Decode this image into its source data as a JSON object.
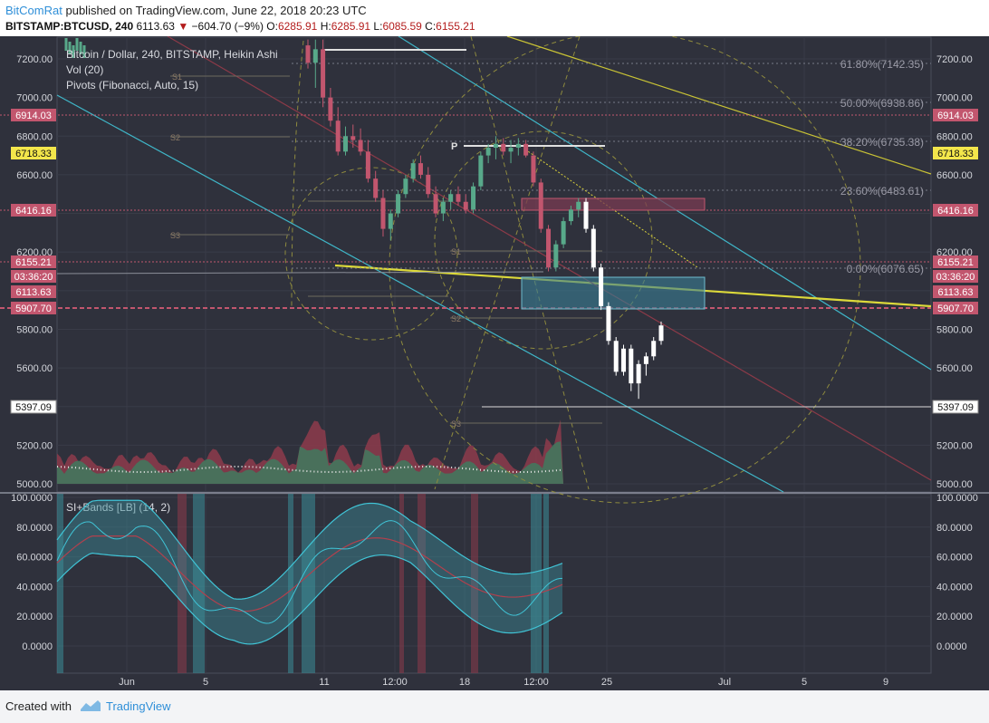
{
  "header": {
    "author": "BitComRat",
    "published_text": "published on TradingView.com, June 22, 2018 20:23 UTC",
    "symbol": "BITSTAMP:BTCUSD, 240",
    "last": "6113.63",
    "arrow": "▼",
    "change": "−604.70 (−9%)",
    "o_label": "O:",
    "o": "6285.91",
    "h_label": "H:",
    "h": "6285.91",
    "l_label": "L:",
    "l": "6085.59",
    "c_label": "C:",
    "c": "6155.21"
  },
  "legend": {
    "title": "Bitcoin / Dollar, 240, BITSTAMP, Heikin Ashi",
    "vol": "Vol (20)",
    "pivots": "Pivots (Fibonacci, Auto, 15)",
    "si": "SI+Bands [LB] (14, 2)"
  },
  "fib_labels": [
    "61.80%(7142.35)",
    "50.00%(6938.86)",
    "38.20%(6735.38)",
    "23.60%(6483.61)",
    "0.00%(6076.65)"
  ],
  "pivot_labels": [
    "S1",
    "S2",
    "S3",
    "P",
    "S1",
    "S2",
    "S3"
  ],
  "price_badges": [
    {
      "text": "6914.03",
      "color": "#c2566e"
    },
    {
      "text": "6718.33",
      "color": "#f3e64b"
    },
    {
      "text": "6416.16",
      "color": "#c2566e"
    },
    {
      "text": "6155.21",
      "color": "#c2566e"
    },
    {
      "text": "03:36:20",
      "color": "#c2566e"
    },
    {
      "text": "6113.63",
      "color": "#c2566e"
    },
    {
      "text": "5907.70",
      "color": "#c2566e"
    },
    {
      "text": "5397.09",
      "color": "#ffffff"
    }
  ],
  "footer": {
    "created_with": "Created with",
    "brand": "TradingView"
  },
  "chart_data": [
    {
      "type": "candlestick",
      "title": "Bitcoin / Dollar, 240, BITSTAMP, Heikin Ashi",
      "x_ticks": [
        "Jun",
        "5",
        "11",
        "12:00",
        "18",
        "12:00",
        "25",
        "Jul",
        "5",
        "9"
      ],
      "y_ticks": [
        7200,
        7000,
        6800,
        6600,
        6400,
        6200,
        6000,
        5800,
        5600,
        5400,
        5200,
        5000
      ],
      "y_tick_labels": [
        "7200.00",
        "7000.00",
        "6800.00",
        "6600.00",
        "",
        "6200.00",
        "",
        "5800.00",
        "5600.00",
        "",
        "5200.00",
        "5000.00"
      ],
      "ylim": [
        4980,
        7300
      ],
      "candles": [
        [
          7270,
          7300,
          7150,
          7180
        ],
        [
          7180,
          7300,
          7050,
          7250
        ],
        [
          7250,
          7300,
          6950,
          7000
        ],
        [
          7000,
          7050,
          6850,
          6880
        ],
        [
          6880,
          6950,
          6700,
          6720
        ],
        [
          6720,
          6850,
          6700,
          6800
        ],
        [
          6800,
          6860,
          6740,
          6780
        ],
        [
          6780,
          6840,
          6700,
          6720
        ],
        [
          6720,
          6780,
          6560,
          6580
        ],
        [
          6580,
          6620,
          6460,
          6480
        ],
        [
          6480,
          6520,
          6280,
          6320
        ],
        [
          6320,
          6420,
          6260,
          6400
        ],
        [
          6400,
          6520,
          6380,
          6500
        ],
        [
          6500,
          6600,
          6480,
          6580
        ],
        [
          6580,
          6680,
          6560,
          6660
        ],
        [
          6660,
          6700,
          6580,
          6600
        ],
        [
          6600,
          6640,
          6480,
          6500
        ],
        [
          6500,
          6540,
          6380,
          6400
        ],
        [
          6400,
          6480,
          6360,
          6460
        ],
        [
          6460,
          6520,
          6420,
          6500
        ],
        [
          6500,
          6540,
          6440,
          6460
        ],
        [
          6460,
          6500,
          6400,
          6420
        ],
        [
          6420,
          6560,
          6400,
          6540
        ],
        [
          6540,
          6720,
          6520,
          6700
        ],
        [
          6700,
          6760,
          6660,
          6740
        ],
        [
          6740,
          6800,
          6680,
          6760
        ],
        [
          6760,
          6790,
          6700,
          6720
        ],
        [
          6720,
          6780,
          6660,
          6740
        ],
        [
          6740,
          6790,
          6700,
          6760
        ],
        [
          6760,
          6780,
          6690,
          6700
        ],
        [
          6700,
          6720,
          6540,
          6560
        ],
        [
          6560,
          6580,
          6300,
          6320
        ],
        [
          6320,
          6340,
          6100,
          6120
        ],
        [
          6120,
          6260,
          6100,
          6240
        ],
        [
          6240,
          6380,
          6220,
          6360
        ],
        [
          6360,
          6440,
          6340,
          6420
        ],
        [
          6420,
          6480,
          6380,
          6460
        ],
        [
          6460,
          6480,
          6300,
          6320
        ],
        [
          6320,
          6340,
          6100,
          6120
        ],
        [
          6120,
          6140,
          5900,
          5920
        ],
        [
          5920,
          5940,
          5720,
          5740
        ],
        [
          5740,
          5760,
          5560,
          5580
        ],
        [
          5580,
          5720,
          5560,
          5700
        ],
        [
          5700,
          5720,
          5480,
          5520
        ],
        [
          5520,
          5640,
          5440,
          5620
        ],
        [
          5620,
          5680,
          5560,
          5660
        ],
        [
          5660,
          5760,
          5640,
          5740
        ],
        [
          5740,
          5840,
          5720,
          5820
        ]
      ]
    },
    {
      "type": "line",
      "title": "SI+Bands [LB] (14, 2)",
      "y_ticks": [
        100,
        80,
        60,
        40,
        20,
        0
      ],
      "y_tick_labels": [
        "100.0000",
        "80.0000",
        "60.0000",
        "40.0000",
        "20.0000",
        "0.0000"
      ],
      "ylim": [
        -15,
        100
      ]
    }
  ]
}
